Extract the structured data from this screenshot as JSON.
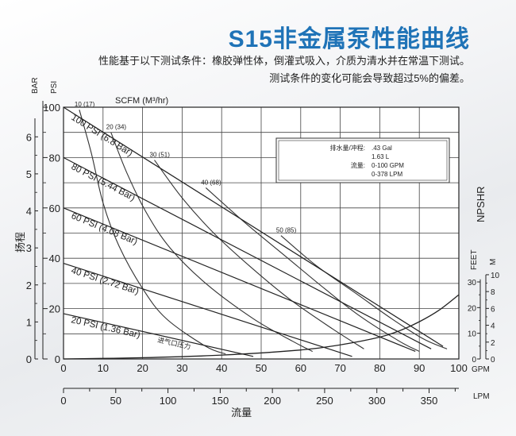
{
  "header": {
    "title": "S15非金属泵性能曲线",
    "subtitle_line1": "性能基于以下测试条件：橡胶弹性体，倒灌式吸入，介质为清水并在常温下测试。",
    "subtitle_line2": "测试条件的变化可能会导致超过5%的偏差。"
  },
  "chart_data": {
    "type": "line",
    "title": "S15非金属泵性能曲线",
    "xlabel": "流量",
    "ylabel": "扬程",
    "x_unit_primary": "GPM",
    "x_unit_secondary": "LPM",
    "y_unit_primary": "PSI",
    "y_unit_secondary": "BAR",
    "npshr_label": "NPSHR",
    "npshr_unit_feet": "FEET",
    "npshr_unit_m": "M",
    "scfm_label": "SCFM (M³/hr)",
    "xlim": [
      0,
      100
    ],
    "ylim": [
      0,
      100
    ],
    "x_ticks": [
      0,
      10,
      20,
      30,
      40,
      50,
      60,
      70,
      80,
      90,
      100
    ],
    "y_ticks": [
      0,
      20,
      40,
      60,
      80,
      100
    ],
    "bar_ticks": [
      0,
      1,
      2,
      3,
      4,
      5,
      6
    ],
    "lpm_ticks": [
      0,
      50,
      100,
      150,
      200,
      250,
      300,
      350
    ],
    "npshr_feet_ticks": [
      0,
      10,
      20,
      30
    ],
    "npshr_m_ticks": [
      0,
      2,
      4,
      6,
      8,
      10
    ],
    "series": [
      {
        "name": "100 PSI (6.8 Bar)",
        "x": [
          0,
          96
        ],
        "y": [
          100,
          5
        ]
      },
      {
        "name": "80 PSI (5.44 Bar)",
        "x": [
          0,
          93
        ],
        "y": [
          80,
          4
        ]
      },
      {
        "name": "60 PSI (4.08 Bar)",
        "x": [
          0,
          89
        ],
        "y": [
          60,
          3
        ]
      },
      {
        "name": "40 PSI (2.72 Bar)",
        "x": [
          0,
          73
        ],
        "y": [
          38,
          1
        ]
      },
      {
        "name": "20 PSI (1.36 Bar)",
        "x": [
          0,
          48
        ],
        "y": [
          18,
          1
        ]
      }
    ],
    "air_consumption_curves": [
      {
        "label": "10 (17)",
        "x": [
          4,
          7,
          10,
          14,
          20,
          26,
          36,
          41
        ],
        "y": [
          99,
          82,
          62,
          45,
          28,
          16,
          5,
          2
        ]
      },
      {
        "label": "20 (34)",
        "x": [
          12,
          16,
          21,
          27,
          36,
          48,
          58,
          63
        ],
        "y": [
          90,
          74,
          58,
          44,
          30,
          16,
          7,
          3
        ]
      },
      {
        "label": "30 (51)",
        "x": [
          23,
          30,
          38,
          47,
          57,
          68,
          76
        ],
        "y": [
          79,
          64,
          50,
          37,
          24,
          12,
          4
        ]
      },
      {
        "label": "40 (68)",
        "x": [
          36,
          46,
          56,
          66,
          75,
          85,
          90
        ],
        "y": [
          68,
          54,
          41,
          28,
          17,
          7,
          3
        ]
      },
      {
        "label": "50 (85)",
        "x": [
          55,
          64,
          74,
          83,
          91,
          97
        ],
        "y": [
          49,
          37,
          26,
          16,
          8,
          4
        ]
      }
    ],
    "npshr_curve": {
      "x": [
        0,
        20,
        40,
        60,
        70,
        80,
        85,
        90,
        95,
        100
      ],
      "y_feet": [
        0,
        0.5,
        1.5,
        3.5,
        5.5,
        8.5,
        11,
        14.5,
        19,
        25
      ]
    },
    "inlet_pressure_label": "进气口压力",
    "info_box": {
      "displacement_label": "排水量/冲程:",
      "displacement_values": [
        ".43 Gal",
        "1.63 L"
      ],
      "flow_label": "流量:",
      "flow_values": [
        "0-100 GPM",
        "0-378 LPM"
      ]
    },
    "grid": true
  }
}
